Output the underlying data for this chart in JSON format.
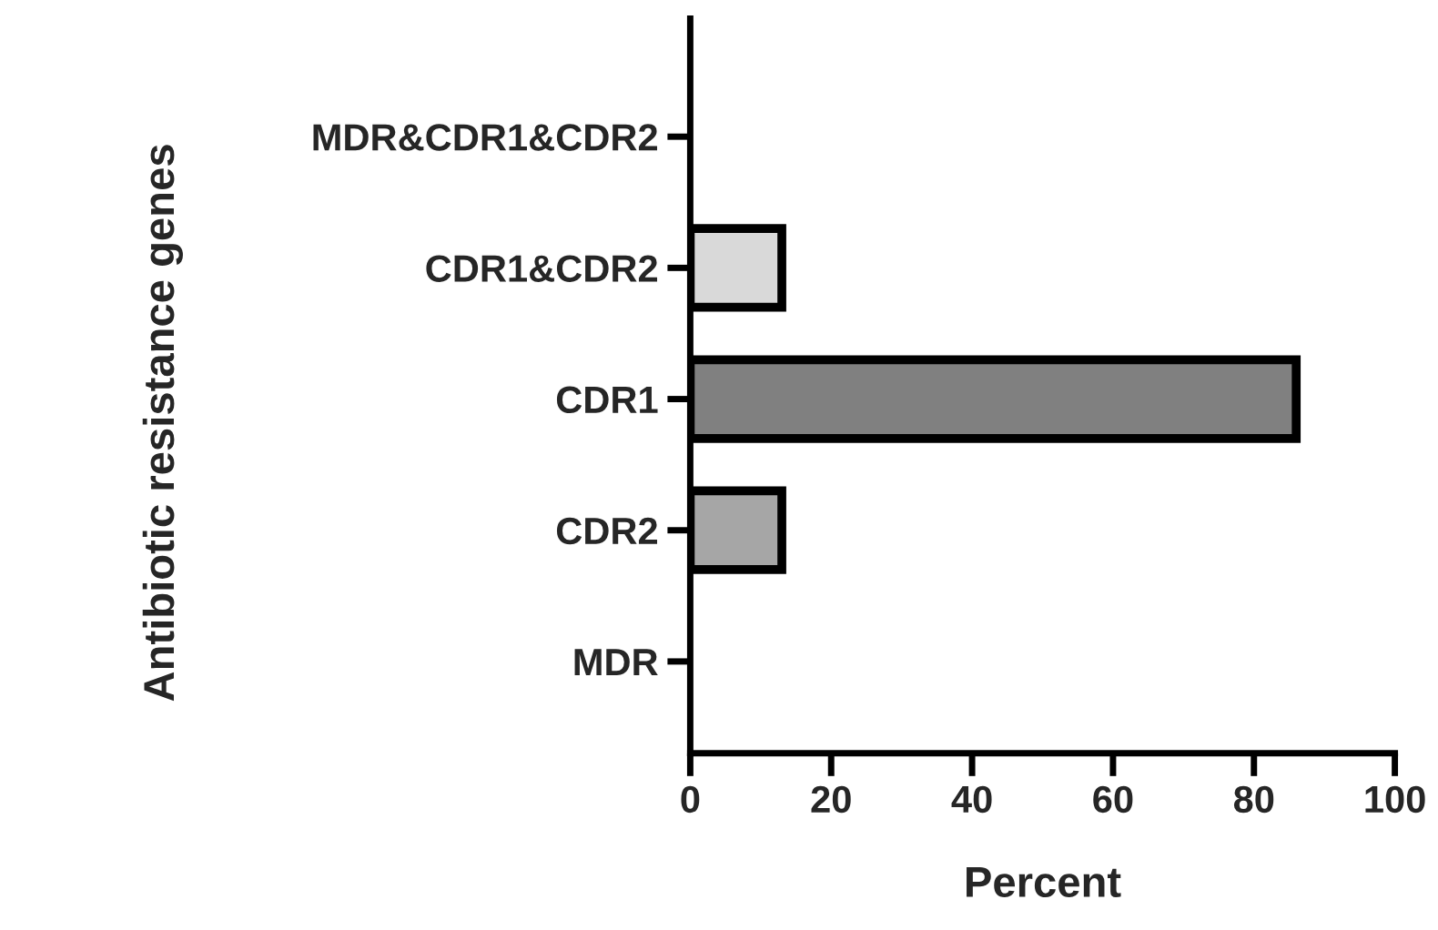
{
  "chart_data": {
    "type": "bar",
    "orientation": "horizontal",
    "xlabel": "Percent",
    "ylabel": "Antibiotic resistance genes",
    "categories": [
      "MDR&CDR1&CDR2",
      "CDR1&CDR2",
      "CDR1",
      "CDR2",
      "MDR"
    ],
    "values": [
      0,
      13,
      86,
      13,
      0
    ],
    "colors": [
      "#ffffff",
      "#d9d9d9",
      "#808080",
      "#a6a6a6",
      "#ffffff"
    ],
    "xlim": [
      0,
      100
    ],
    "xticks": [
      0,
      20,
      40,
      60,
      80,
      100
    ],
    "grid": false
  }
}
